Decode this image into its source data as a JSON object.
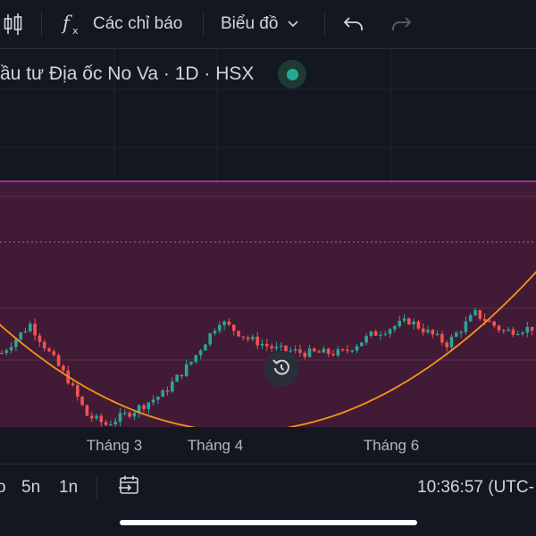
{
  "toolbar": {
    "chart_type_icon": "candlestick-icon",
    "indicators_icon": "fx-icon",
    "indicators_label": "Các chỉ báo",
    "chart_menu_label": "Biểu đồ",
    "chart_menu_icon": "chevron-down-icon",
    "undo_icon": "undo-icon",
    "redo_icon": "redo-icon"
  },
  "legend": {
    "symbol_text": "ầu tư Địa ốc No Va · 1D · HSX",
    "status_color": "#22ab94"
  },
  "chart_data": {
    "type": "candlestick",
    "x_tick_labels": [
      "Tháng 3",
      "Tháng 4",
      "Tháng 6"
    ],
    "colors": {
      "up": "#26a69a",
      "down": "#ef5350",
      "zone_fill": "#4a1c38",
      "zone_border": "#c13dbd",
      "curve": "#f7931a"
    },
    "trend": [
      {
        "i": 0,
        "v": 0.5
      },
      {
        "i": 6,
        "v": 0.66
      },
      {
        "i": 10,
        "v": 0.5
      },
      {
        "i": 14,
        "v": 0.35
      },
      {
        "i": 18,
        "v": 0.15
      },
      {
        "i": 22,
        "v": 0.1
      },
      {
        "i": 28,
        "v": 0.18
      },
      {
        "i": 34,
        "v": 0.27
      },
      {
        "i": 40,
        "v": 0.45
      },
      {
        "i": 46,
        "v": 0.68
      },
      {
        "i": 52,
        "v": 0.58
      },
      {
        "i": 58,
        "v": 0.52
      },
      {
        "i": 64,
        "v": 0.5
      },
      {
        "i": 72,
        "v": 0.5
      },
      {
        "i": 78,
        "v": 0.6
      },
      {
        "i": 86,
        "v": 0.68
      },
      {
        "i": 94,
        "v": 0.55
      },
      {
        "i": 100,
        "v": 0.72
      },
      {
        "i": 106,
        "v": 0.62
      },
      {
        "i": 112,
        "v": 0.64
      }
    ],
    "zone": {
      "top_level": 1.0,
      "dotted_level": 0.75
    },
    "curve": {
      "vertex_x_fraction": 0.45,
      "vertex_level": -0.25
    },
    "grid": true
  },
  "reset_icon": "reset-icon",
  "bottom_bar": {
    "range_partial_label": "o",
    "range_5y_label": "5n",
    "range_1y_label": "1n",
    "goto_date_icon": "calendar-goto-icon",
    "clock_label": "10:36:57 (UTC-"
  }
}
